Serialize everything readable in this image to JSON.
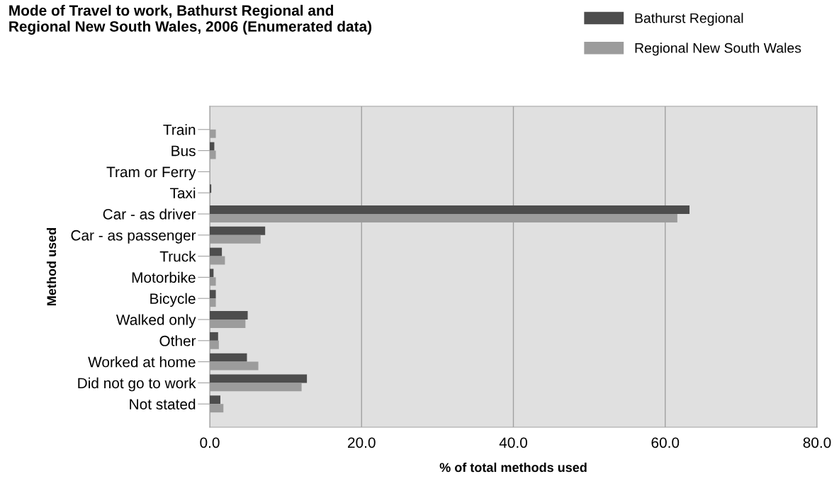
{
  "chart_data": {
    "type": "bar",
    "orientation": "horizontal",
    "title": "Mode of Travel to work, Bathurst Regional and\nRegional New South Wales, 2006 (Enumerated data)",
    "xlabel": "% of total methods used",
    "ylabel": "Method used",
    "categories": [
      "Train",
      "Bus",
      "Tram or Ferry",
      "Taxi",
      "Car - as driver",
      "Car - as passenger",
      "Truck",
      "Motorbike",
      "Bicycle",
      "Walked only",
      "Other",
      "Worked at home",
      "Did not go to work",
      "Not stated"
    ],
    "series": [
      {
        "name": "Bathurst Regional",
        "color": "#4d4d4d",
        "values": [
          0,
          0.6,
          0,
          0.2,
          63.2,
          7.3,
          1.6,
          0.5,
          0.8,
          5.0,
          1.1,
          4.9,
          12.8,
          1.4
        ]
      },
      {
        "name": "Regional New South Wales",
        "color": "#9c9c9c",
        "values": [
          0.8,
          0.8,
          0,
          0,
          61.6,
          6.7,
          2.0,
          0.8,
          0.8,
          4.7,
          1.2,
          6.4,
          12.1,
          1.8
        ]
      }
    ],
    "xlim": [
      0,
      80
    ],
    "xticks": [
      {
        "value": 0,
        "label": "0.0"
      },
      {
        "value": 20,
        "label": "20.0"
      },
      {
        "value": 40,
        "label": "40.0"
      },
      {
        "value": 60,
        "label": "60.0"
      },
      {
        "value": 80,
        "label": "80.0"
      }
    ],
    "grid": "x",
    "legend": "top right"
  }
}
